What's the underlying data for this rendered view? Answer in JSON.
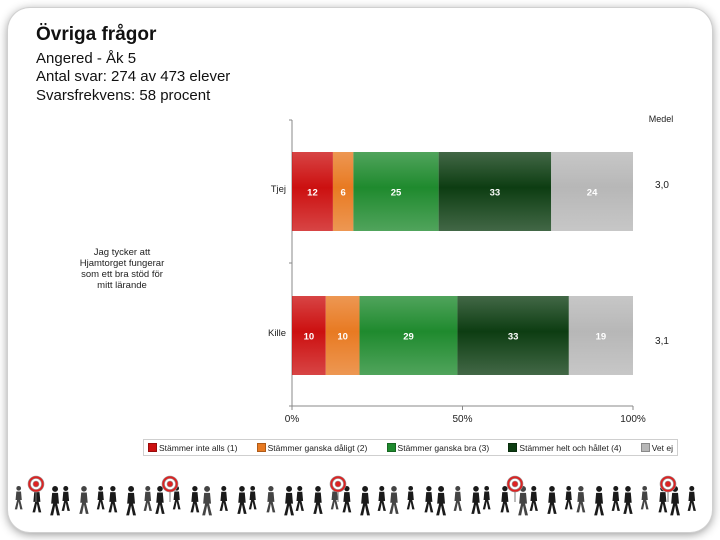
{
  "header": {
    "title": "Övriga frågor",
    "line1": "Angered - Åk 5",
    "line2": "Antal svar: 274 av 473 elever",
    "line3": "Svarsfrekvens: 58 procent"
  },
  "chart_data": {
    "type": "bar",
    "orientation": "horizontal",
    "stacked": "percent",
    "question_label": "Jag tycker att Hjamtorget fungerar som ett bra stöd för mitt lärande",
    "categories": [
      "Tjej",
      "Kille"
    ],
    "series": [
      {
        "name": "Stämmer inte alls (1)",
        "color": "#cc1010",
        "values": [
          12,
          10
        ]
      },
      {
        "name": "Stämmer ganska dåligt (2)",
        "color": "#e87a22",
        "values": [
          6,
          10
        ]
      },
      {
        "name": "Stämmer ganska bra (3)",
        "color": "#1f8a2e",
        "values": [
          25,
          29
        ]
      },
      {
        "name": "Stämmer helt och hållet (4)",
        "color": "#0d3d12",
        "values": [
          33,
          33
        ]
      },
      {
        "name": "Vet ej",
        "color": "#b7b7b7",
        "values": [
          24,
          19
        ]
      }
    ],
    "mean_header": "Medel",
    "means": [
      "3,0",
      "3,1"
    ],
    "x_ticks": [
      "0%",
      "50%",
      "100%"
    ],
    "xlim": [
      0,
      100
    ],
    "legend_position": "bottom"
  }
}
